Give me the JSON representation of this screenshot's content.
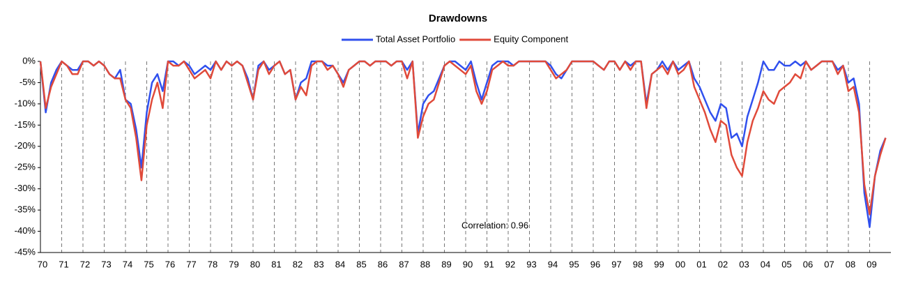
{
  "chart_data": {
    "type": "line",
    "title": "Drawdowns",
    "annotation": "Correlation: 0.96",
    "x": [
      1970,
      1970.25,
      1970.5,
      1970.75,
      1971,
      1971.25,
      1971.5,
      1971.75,
      1972,
      1972.25,
      1972.5,
      1972.75,
      1973,
      1973.25,
      1973.5,
      1973.75,
      1974,
      1974.25,
      1974.5,
      1974.75,
      1975,
      1975.25,
      1975.5,
      1975.75,
      1976,
      1976.25,
      1976.5,
      1976.75,
      1977,
      1977.25,
      1977.5,
      1977.75,
      1978,
      1978.25,
      1978.5,
      1978.75,
      1979,
      1979.25,
      1979.5,
      1979.75,
      1980,
      1980.25,
      1980.5,
      1980.75,
      1981,
      1981.25,
      1981.5,
      1981.75,
      1982,
      1982.25,
      1982.5,
      1982.75,
      1983,
      1983.25,
      1983.5,
      1983.75,
      1984,
      1984.25,
      1984.5,
      1984.75,
      1985,
      1985.25,
      1985.5,
      1985.75,
      1986,
      1986.25,
      1986.5,
      1986.75,
      1987,
      1987.25,
      1987.5,
      1987.75,
      1988,
      1988.25,
      1988.5,
      1988.75,
      1989,
      1989.25,
      1989.5,
      1989.75,
      1990,
      1990.25,
      1990.5,
      1990.75,
      1991,
      1991.25,
      1991.5,
      1991.75,
      1992,
      1992.25,
      1992.5,
      1992.75,
      1993,
      1993.25,
      1993.5,
      1993.75,
      1994,
      1994.25,
      1994.5,
      1994.75,
      1995,
      1995.25,
      1995.5,
      1995.75,
      1996,
      1996.25,
      1996.5,
      1996.75,
      1997,
      1997.25,
      1997.5,
      1997.75,
      1998,
      1998.25,
      1998.5,
      1998.75,
      1999,
      1999.25,
      1999.5,
      1999.75,
      2000,
      2000.25,
      2000.5,
      2000.75,
      2001,
      2001.25,
      2001.5,
      2001.75,
      2002,
      2002.25,
      2002.5,
      2002.75,
      2003,
      2003.25,
      2003.5,
      2003.75,
      2004,
      2004.25,
      2004.5,
      2004.75,
      2005,
      2005.25,
      2005.5,
      2005.75,
      2006,
      2006.25,
      2006.5,
      2006.75,
      2007,
      2007.25,
      2007.5,
      2007.75,
      2008,
      2008.25,
      2008.5,
      2008.75,
      2009,
      2009.25,
      2009.5,
      2009.75
    ],
    "series": [
      {
        "name": "Total Asset Portfolio",
        "color": "#3050ee",
        "values": [
          0,
          -12,
          -5,
          -2,
          0,
          -1,
          -2,
          -2,
          0,
          0,
          -1,
          0,
          -1,
          -3,
          -4,
          -2,
          -9,
          -10,
          -16,
          -25,
          -12,
          -5,
          -3,
          -7,
          0,
          0,
          -1,
          0,
          -1,
          -3,
          -2,
          -1,
          -2,
          0,
          -2,
          0,
          -1,
          0,
          -1,
          -4,
          -9,
          -1,
          0,
          -2,
          -1,
          0,
          -3,
          -2,
          -9,
          -5,
          -4,
          0,
          0,
          0,
          -1,
          -1,
          -3,
          -5,
          -2,
          -1,
          0,
          0,
          -1,
          0,
          0,
          0,
          -1,
          0,
          0,
          -2,
          0,
          -17,
          -10,
          -8,
          -7,
          -4,
          -1,
          0,
          0,
          -1,
          -2,
          0,
          -5,
          -9,
          -5,
          -1,
          0,
          0,
          0,
          -1,
          0,
          0,
          0,
          0,
          0,
          0,
          -1,
          -3,
          -4,
          -2,
          0,
          0,
          0,
          0,
          0,
          -1,
          -2,
          0,
          0,
          -2,
          0,
          -1,
          0,
          0,
          -10,
          -3,
          -2,
          0,
          -2,
          0,
          -2,
          -1,
          0,
          -4,
          -6,
          -9,
          -12,
          -14,
          -10,
          -11,
          -18,
          -17,
          -20,
          -13,
          -9,
          -5,
          0,
          -2,
          -2,
          0,
          -1,
          -1,
          0,
          -1,
          0,
          -2,
          -1,
          0,
          0,
          0,
          -2,
          -1,
          -5,
          -4,
          -10,
          -31,
          -39,
          -27,
          -21,
          -18
        ]
      },
      {
        "name": "Equity Component",
        "color": "#e04a3a",
        "values": [
          0,
          -11,
          -6,
          -3,
          0,
          -1,
          -3,
          -3,
          0,
          0,
          -1,
          0,
          -1,
          -3,
          -4,
          -4,
          -9,
          -11,
          -18,
          -28,
          -15,
          -9,
          -5,
          -11,
          0,
          -1,
          -1,
          0,
          -2,
          -4,
          -3,
          -2,
          -4,
          0,
          -2,
          0,
          -1,
          0,
          -1,
          -5,
          -9,
          -2,
          0,
          -3,
          -1,
          0,
          -3,
          -2,
          -9,
          -6,
          -8,
          -1,
          0,
          0,
          -2,
          -1,
          -3,
          -6,
          -2,
          -1,
          0,
          0,
          -1,
          0,
          0,
          0,
          -1,
          0,
          0,
          -4,
          0,
          -18,
          -13,
          -10,
          -9,
          -5,
          -1,
          0,
          -1,
          -2,
          -3,
          -1,
          -7,
          -10,
          -7,
          -2,
          -1,
          0,
          -1,
          -1,
          0,
          0,
          0,
          0,
          0,
          0,
          -2,
          -4,
          -3,
          -2,
          0,
          0,
          0,
          0,
          0,
          -1,
          -2,
          0,
          0,
          -2,
          0,
          -2,
          0,
          0,
          -11,
          -3,
          -2,
          -1,
          -3,
          0,
          -3,
          -2,
          0,
          -6,
          -9,
          -12,
          -16,
          -19,
          -14,
          -15,
          -22,
          -25,
          -27,
          -19,
          -14,
          -11,
          -7,
          -9,
          -10,
          -7,
          -6,
          -5,
          -3,
          -4,
          0,
          -2,
          -1,
          0,
          0,
          0,
          -3,
          -1,
          -7,
          -6,
          -12,
          -29,
          -36,
          -27,
          -22,
          -18
        ]
      }
    ],
    "xlim": [
      1970,
      2010
    ],
    "xticks": [
      {
        "value": 1970,
        "label": "70"
      },
      {
        "value": 1971,
        "label": "71"
      },
      {
        "value": 1972,
        "label": "72"
      },
      {
        "value": 1973,
        "label": "73"
      },
      {
        "value": 1974,
        "label": "74"
      },
      {
        "value": 1975,
        "label": "75"
      },
      {
        "value": 1976,
        "label": "76"
      },
      {
        "value": 1977,
        "label": "77"
      },
      {
        "value": 1978,
        "label": "78"
      },
      {
        "value": 1979,
        "label": "79"
      },
      {
        "value": 1980,
        "label": "80"
      },
      {
        "value": 1981,
        "label": "81"
      },
      {
        "value": 1982,
        "label": "82"
      },
      {
        "value": 1983,
        "label": "83"
      },
      {
        "value": 1984,
        "label": "84"
      },
      {
        "value": 1985,
        "label": "85"
      },
      {
        "value": 1986,
        "label": "86"
      },
      {
        "value": 1987,
        "label": "87"
      },
      {
        "value": 1988,
        "label": "88"
      },
      {
        "value": 1989,
        "label": "89"
      },
      {
        "value": 1990,
        "label": "90"
      },
      {
        "value": 1991,
        "label": "91"
      },
      {
        "value": 1992,
        "label": "92"
      },
      {
        "value": 1993,
        "label": "93"
      },
      {
        "value": 1994,
        "label": "94"
      },
      {
        "value": 1995,
        "label": "95"
      },
      {
        "value": 1996,
        "label": "96"
      },
      {
        "value": 1997,
        "label": "97"
      },
      {
        "value": 1998,
        "label": "98"
      },
      {
        "value": 1999,
        "label": "99"
      },
      {
        "value": 2000,
        "label": "00"
      },
      {
        "value": 2001,
        "label": "01"
      },
      {
        "value": 2002,
        "label": "02"
      },
      {
        "value": 2003,
        "label": "03"
      },
      {
        "value": 2004,
        "label": "04"
      },
      {
        "value": 2005,
        "label": "05"
      },
      {
        "value": 2006,
        "label": "06"
      },
      {
        "value": 2007,
        "label": "07"
      },
      {
        "value": 2008,
        "label": "08"
      },
      {
        "value": 2009,
        "label": "09"
      }
    ],
    "ylim": [
      -45,
      0
    ],
    "yticks": [
      {
        "value": 0,
        "label": "0%"
      },
      {
        "value": -5,
        "label": "-5%"
      },
      {
        "value": -10,
        "label": "-10%"
      },
      {
        "value": -15,
        "label": "-15%"
      },
      {
        "value": -20,
        "label": "-20%"
      },
      {
        "value": -25,
        "label": "-25%"
      },
      {
        "value": -30,
        "label": "-30%"
      },
      {
        "value": -35,
        "label": "-35%"
      },
      {
        "value": -40,
        "label": "-40%"
      },
      {
        "value": -45,
        "label": "-45%"
      }
    ],
    "grid": "x"
  }
}
